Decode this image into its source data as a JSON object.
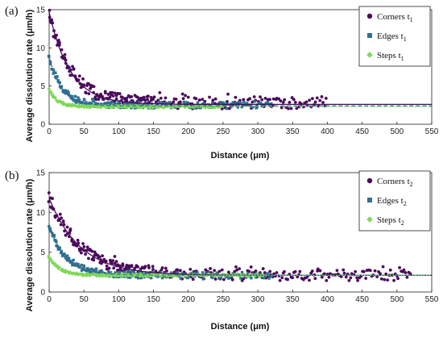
{
  "chart_data": [
    {
      "type": "scatter",
      "panel_label": "(a)",
      "xlabel": "Distance (μm)",
      "ylabel": "Average dissolution rate (μm/h)",
      "xlim": [
        0,
        550
      ],
      "ylim": [
        0,
        15
      ],
      "xticks": [
        0,
        50,
        100,
        150,
        200,
        250,
        300,
        350,
        400,
        450,
        500,
        550
      ],
      "yticks": [
        0,
        5,
        10,
        15
      ],
      "legend_position": "top-right",
      "series": [
        {
          "name": "Corners t",
          "subscript": "1",
          "color": "#4b0a5c",
          "marker": "circle",
          "x_end": 400,
          "start": 14.7,
          "end": 2.8,
          "decay": 30,
          "jitter": 0.8,
          "scatter_extra": 0.9
        },
        {
          "name": "Edges t",
          "subscript": "1",
          "color": "#2f6f8f",
          "marker": "square",
          "x_end": 320,
          "start": 8.8,
          "end": 2.5,
          "decay": 18,
          "jitter": 0.4,
          "scatter_extra": 0.3
        },
        {
          "name": "Steps t",
          "subscript": "1",
          "color": "#7ed957",
          "marker": "diamond",
          "x_end": 250,
          "start": 4.5,
          "end": 2.3,
          "decay": 12,
          "jitter": 0.15,
          "scatter_extra": 0.1
        }
      ],
      "fit_lines": [
        {
          "series": "Corners t",
          "color": "#4b0a5c",
          "dash": "solid",
          "start": 14.7,
          "end": 2.6,
          "decay": 30,
          "x_end": 550
        },
        {
          "series": "Edges t",
          "color": "#2f6f8f",
          "dash": "dashed",
          "start": 8.8,
          "end": 2.4,
          "decay": 18,
          "x_end": 550
        },
        {
          "series": "Steps t",
          "color": "#7ed957",
          "dash": "dotted",
          "start": 4.5,
          "end": 2.3,
          "decay": 12,
          "x_end": 550
        }
      ]
    },
    {
      "type": "scatter",
      "panel_label": "(b)",
      "xlabel": "Distance (μm)",
      "ylabel": "Average dissolution rate (μm/h)",
      "xlim": [
        0,
        550
      ],
      "ylim": [
        0,
        15
      ],
      "xticks": [
        0,
        50,
        100,
        150,
        200,
        250,
        300,
        350,
        400,
        450,
        500,
        550
      ],
      "yticks": [
        0,
        5,
        10,
        15
      ],
      "legend_position": "top-right",
      "series": [
        {
          "name": "Corners t",
          "subscript": "2",
          "color": "#4b0a5c",
          "marker": "circle",
          "x_end": 520,
          "start": 11.8,
          "end": 2.1,
          "decay": 45,
          "jitter": 0.7,
          "scatter_extra": 0.8
        },
        {
          "name": "Edges t",
          "subscript": "2",
          "color": "#2f6f8f",
          "marker": "square",
          "x_end": 320,
          "start": 8.3,
          "end": 2.1,
          "decay": 25,
          "jitter": 0.4,
          "scatter_extra": 0.3
        },
        {
          "name": "Steps t",
          "subscript": "2",
          "color": "#7ed957",
          "marker": "diamond",
          "x_end": 310,
          "start": 4.4,
          "end": 2.1,
          "decay": 15,
          "jitter": 0.15,
          "scatter_extra": 0.1
        }
      ],
      "fit_lines": [
        {
          "series": "Corners t",
          "color": "#4b0a5c",
          "dash": "solid",
          "start": 11.8,
          "end": 2.1,
          "decay": 45,
          "x_end": 550
        },
        {
          "series": "Edges t",
          "color": "#2f6f8f",
          "dash": "dashed",
          "start": 8.3,
          "end": 2.1,
          "decay": 25,
          "x_end": 550
        },
        {
          "series": "Steps t",
          "color": "#7ed957",
          "dash": "dotted",
          "start": 4.4,
          "end": 2.1,
          "decay": 15,
          "x_end": 550
        }
      ]
    }
  ]
}
